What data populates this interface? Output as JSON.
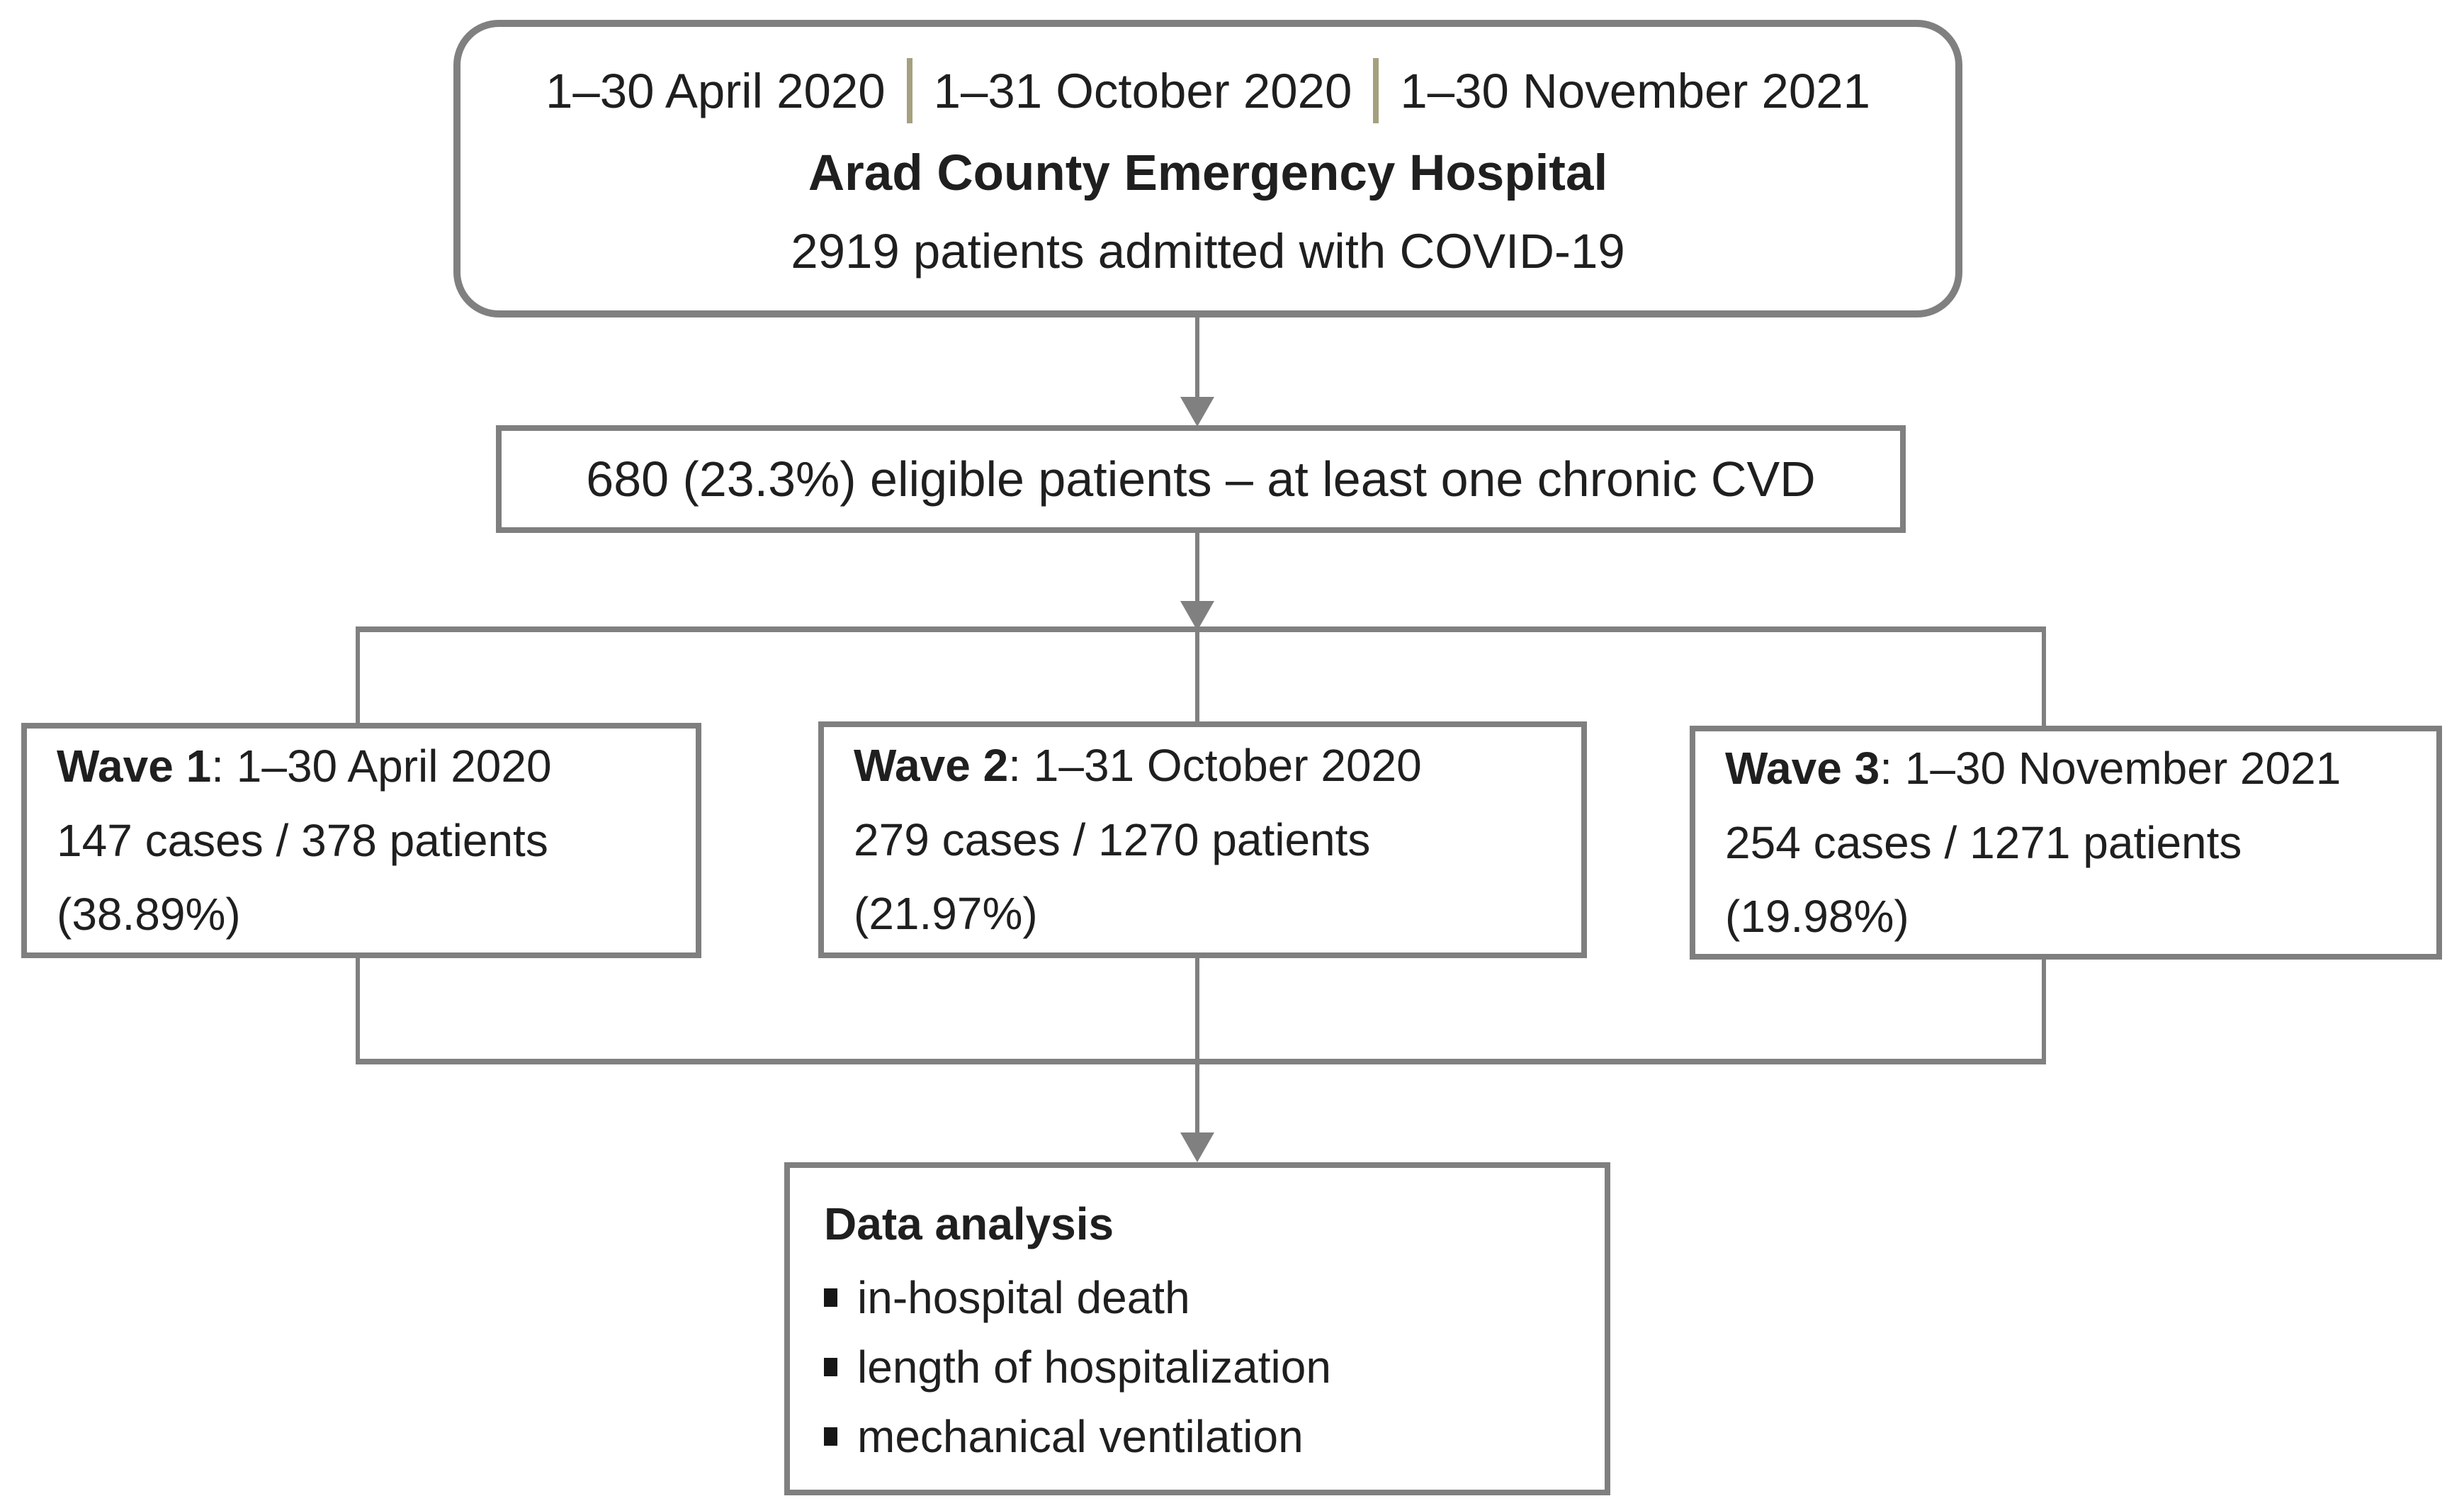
{
  "diagram": {
    "top_box": {
      "dates": [
        "1–30 April 2020",
        "1–31 October 2020",
        "1–30 November 2021"
      ],
      "title": "Arad County Emergency Hospital",
      "subtitle": "2919 patients admitted with COVID-19"
    },
    "eligible_box": {
      "text": "680 (23.3%) eligible patients – at least one chronic CVD"
    },
    "wave_boxes": [
      {
        "label": "Wave 1",
        "period": ": 1–30 April 2020",
        "cases": "147 cases / 378 patients",
        "percent": "(38.89%)"
      },
      {
        "label": "Wave 2",
        "period": ": 1–31 October 2020",
        "cases": "279 cases / 1270 patients",
        "percent": "(21.97%)"
      },
      {
        "label": "Wave 3",
        "period": ": 1–30 November 2021",
        "cases": "254 cases / 1271 patients",
        "percent": "(19.98%)"
      }
    ],
    "analysis_box": {
      "title": "Data analysis",
      "items": [
        "in-hospital death",
        "length of hospitalization",
        "mechanical ventilation"
      ]
    },
    "colors": {
      "border": "#7f7f7f",
      "line": "#808080",
      "separator": "#a5a07f",
      "text": "#1f1f1f"
    }
  }
}
